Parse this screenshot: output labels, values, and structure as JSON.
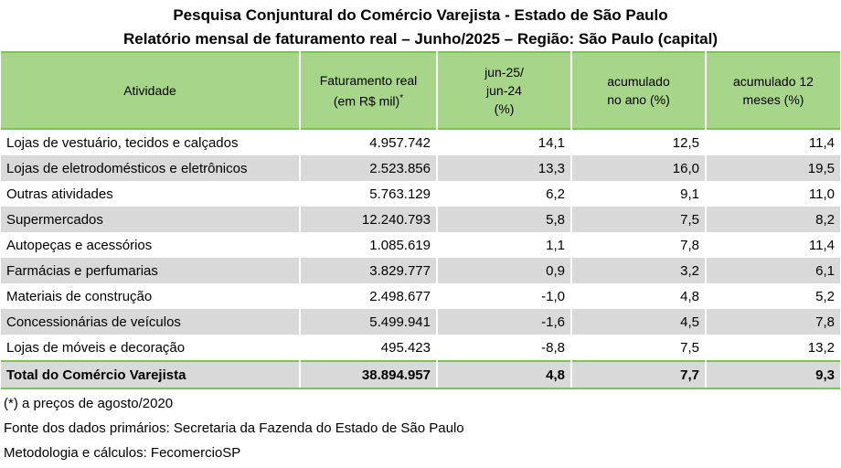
{
  "title_line1": "Pesquisa Conjuntural do Comércio Varejista - Estado de São Paulo",
  "title_line2": "Relatório mensal de faturamento real – Junho/2025 – Região: São Paulo (capital)",
  "headers": {
    "activity": "Atividade",
    "revenue_l1": "Faturamento real",
    "revenue_l2": "(em R$ mil)",
    "revenue_mark": "*",
    "yoy_l1": "jun-25/",
    "yoy_l2": "jun-24",
    "yoy_l3": "(%)",
    "ytd_l1": "acumulado",
    "ytd_l2": "no ano (%)",
    "m12_l1": "acumulado 12",
    "m12_l2": "meses (%)"
  },
  "rows": [
    {
      "activity": "Lojas de vestuário, tecidos e calçados",
      "revenue": "4.957.742",
      "yoy": "14,1",
      "ytd": "12,5",
      "m12": "11,4"
    },
    {
      "activity": "Lojas de eletrodomésticos e eletrônicos",
      "revenue": "2.523.856",
      "yoy": "13,3",
      "ytd": "16,0",
      "m12": "19,5"
    },
    {
      "activity": "Outras atividades",
      "revenue": "5.763.129",
      "yoy": "6,2",
      "ytd": "9,1",
      "m12": "11,0"
    },
    {
      "activity": "Supermercados",
      "revenue": "12.240.793",
      "yoy": "5,8",
      "ytd": "7,5",
      "m12": "8,2"
    },
    {
      "activity": "Autopeças e acessórios",
      "revenue": "1.085.619",
      "yoy": "1,1",
      "ytd": "7,8",
      "m12": "11,4"
    },
    {
      "activity": "Farmácias e perfumarias",
      "revenue": "3.829.777",
      "yoy": "0,9",
      "ytd": "3,2",
      "m12": "6,1"
    },
    {
      "activity": "Materiais de construção",
      "revenue": "2.498.677",
      "yoy": "-1,0",
      "ytd": "4,8",
      "m12": "5,2"
    },
    {
      "activity": "Concessionárias de veículos",
      "revenue": "5.499.941",
      "yoy": "-1,6",
      "ytd": "4,5",
      "m12": "7,8"
    },
    {
      "activity": "Lojas de móveis e decoração",
      "revenue": "495.423",
      "yoy": "-8,8",
      "ytd": "7,5",
      "m12": "13,2"
    }
  ],
  "total": {
    "activity": "Total do Comércio Varejista",
    "revenue": "38.894.957",
    "yoy": "4,8",
    "ytd": "7,7",
    "m12": "9,3"
  },
  "notes": {
    "note1": "(*) a preços de agosto/2020",
    "note2": "Fonte dos dados primários: Secretaria da Fazenda do Estado de São Paulo",
    "note3": "Metodologia e cálculos: FecomercioSP"
  }
}
